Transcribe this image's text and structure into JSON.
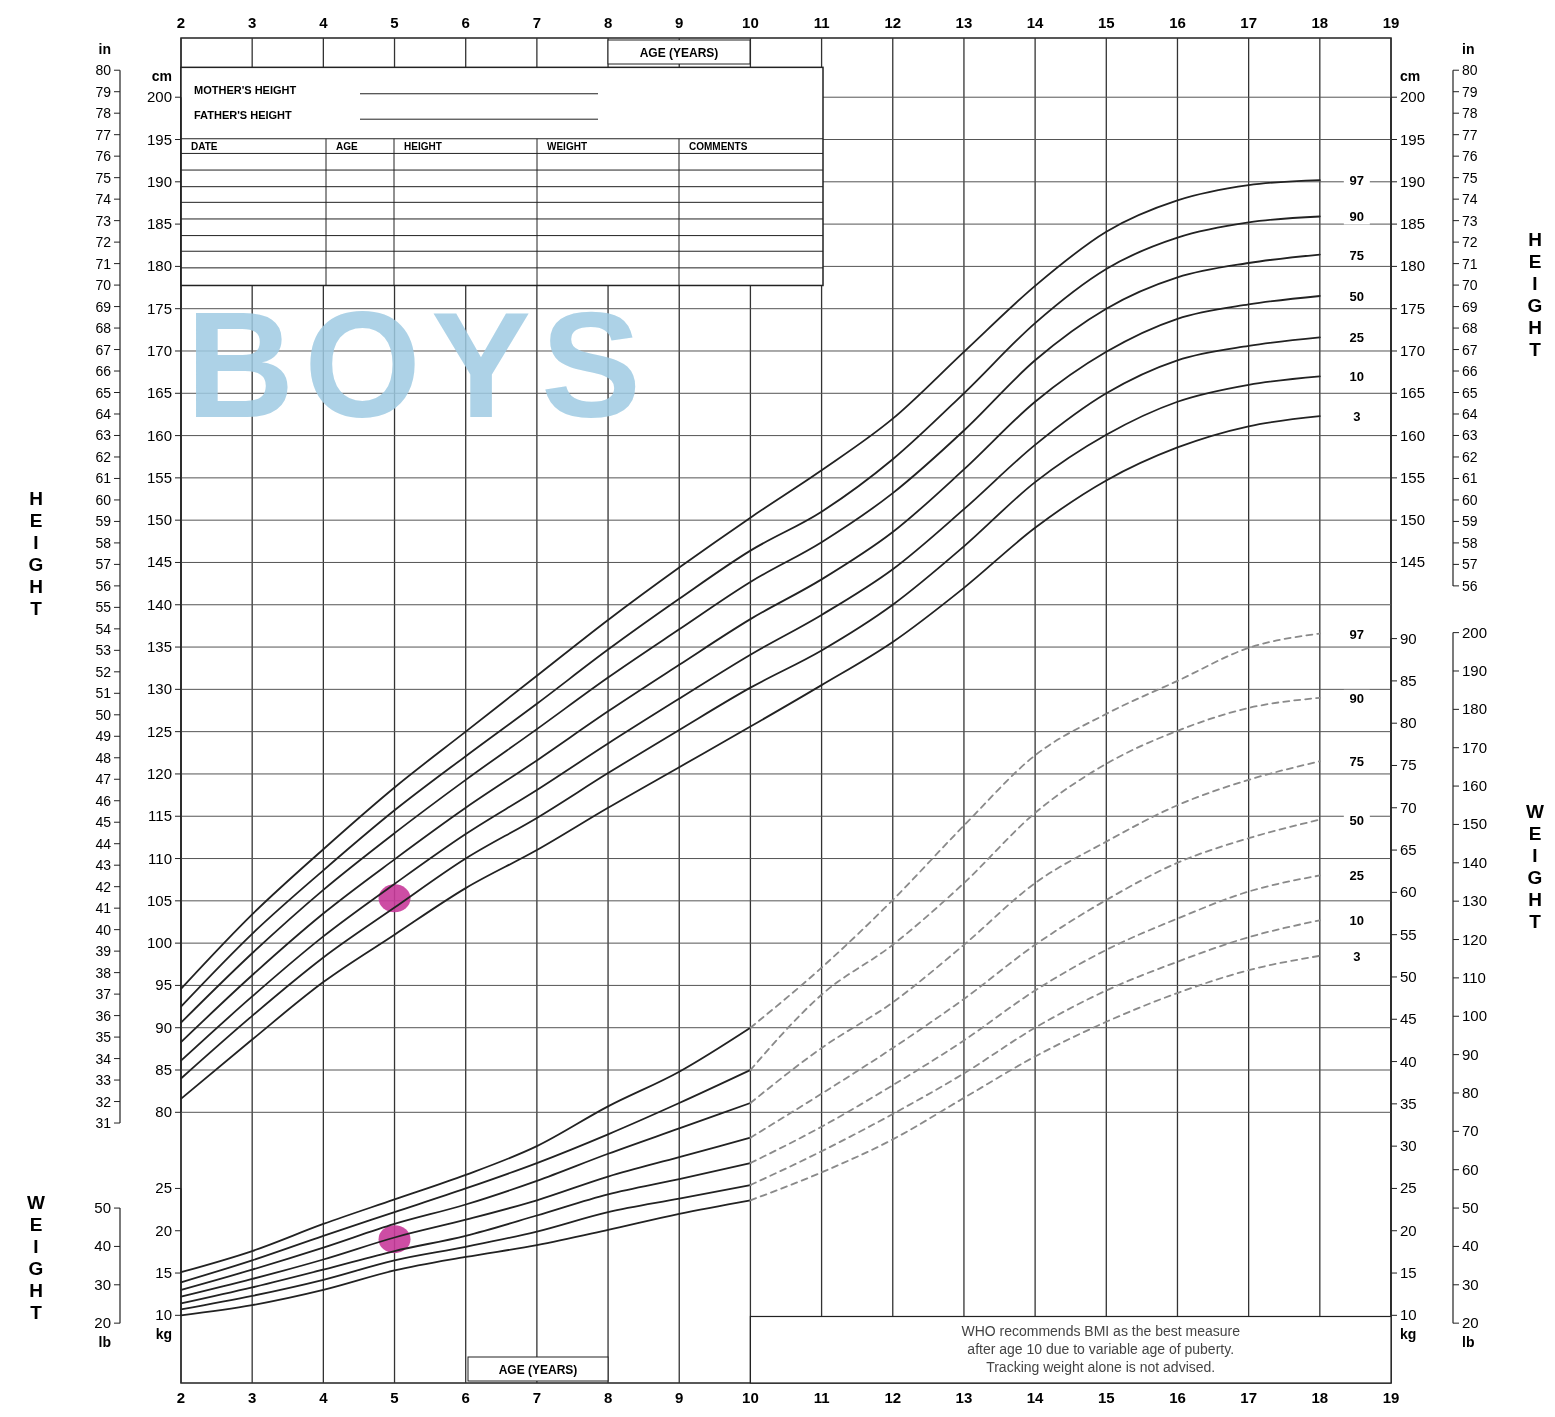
{
  "chart_data": [
    {
      "type": "line",
      "title": "BOYS",
      "xlabel": "AGE (YEARS)",
      "xlim": [
        2,
        19
      ],
      "xticks": [
        2,
        3,
        4,
        5,
        6,
        7,
        8,
        9,
        10,
        11,
        12,
        13,
        14,
        15,
        16,
        17,
        18,
        19
      ],
      "ylabel": "cm",
      "ylim": [
        48,
        207
      ],
      "yticks": [
        80,
        85,
        90,
        95,
        100,
        105,
        110,
        115,
        120,
        125,
        130,
        135,
        140,
        145,
        150,
        155,
        160,
        165,
        170,
        175,
        180,
        185,
        190,
        195,
        200
      ],
      "y2label": "cm",
      "y2lim": [
        48,
        207
      ],
      "y2ticks": [
        145,
        150,
        155,
        160,
        165,
        170,
        175,
        180,
        185,
        190,
        195,
        200
      ],
      "grid": true,
      "legend": "right",
      "annotations": [
        "HEIGHT",
        "HEIGHT",
        "MOTHER'S HEIGHT",
        "FATHER'S HEIGHT",
        "DATE",
        "AGE",
        "HEIGHT",
        "WEIGHT",
        "COMMENTS"
      ],
      "series": [
        {
          "name": "97",
          "color": "#222222",
          "line_style": "solid",
          "x": [
            2,
            3,
            4,
            5,
            6,
            7,
            8,
            9,
            10,
            11,
            12,
            13,
            14,
            15,
            16,
            17,
            18
          ],
          "values": [
            94.6,
            103.4,
            111.1,
            118.4,
            125,
            131.6,
            138.2,
            144.4,
            150.3,
            155.9,
            162,
            169.9,
            177.7,
            184.1,
            187.8,
            189.6,
            190.2
          ]
        },
        {
          "name": "90",
          "color": "#222222",
          "line_style": "solid",
          "x": [
            2,
            3,
            4,
            5,
            6,
            7,
            8,
            9,
            10,
            11,
            12,
            13,
            14,
            15,
            16,
            17,
            18
          ],
          "values": [
            92.5,
            101.1,
            108.6,
            115.7,
            122.1,
            128.3,
            134.7,
            140.7,
            146.4,
            151,
            157.2,
            165,
            173.3,
            179.7,
            183.4,
            185.2,
            185.9
          ]
        },
        {
          "name": "75",
          "color": "#222222",
          "line_style": "solid",
          "x": [
            2,
            3,
            4,
            5,
            6,
            7,
            8,
            9,
            10,
            11,
            12,
            13,
            14,
            15,
            16,
            17,
            18
          ],
          "values": [
            90.6,
            98.8,
            106.3,
            113,
            119.3,
            125.3,
            131.4,
            137.1,
            142.7,
            147.4,
            153.2,
            160.6,
            168.9,
            175,
            178.7,
            180.4,
            181.4
          ]
        },
        {
          "name": "50",
          "color": "#222222",
          "line_style": "solid",
          "x": [
            2,
            3,
            4,
            5,
            6,
            7,
            8,
            9,
            10,
            11,
            12,
            13,
            14,
            15,
            16,
            17,
            18
          ],
          "values": [
            88.3,
            96.2,
            103.5,
            109.9,
            116,
            121.6,
            127.4,
            132.9,
            138.3,
            143,
            148.6,
            156,
            164,
            169.9,
            173.8,
            175.5,
            176.5
          ]
        },
        {
          "name": "25",
          "color": "#222222",
          "line_style": "solid",
          "x": [
            2,
            3,
            4,
            5,
            6,
            7,
            8,
            9,
            10,
            11,
            12,
            13,
            14,
            15,
            16,
            17,
            18
          ],
          "values": [
            86.1,
            93.7,
            100.8,
            107,
            112.9,
            118.1,
            123.6,
            128.9,
            134.1,
            138.8,
            144.2,
            151.3,
            158.9,
            165,
            168.9,
            170.6,
            171.6
          ]
        },
        {
          "name": "10",
          "color": "#222222",
          "line_style": "solid",
          "x": [
            2,
            3,
            4,
            5,
            6,
            7,
            8,
            9,
            10,
            11,
            12,
            13,
            14,
            15,
            16,
            17,
            18
          ],
          "values": [
            84,
            91.4,
            98.3,
            104.2,
            110,
            114.8,
            120.1,
            125.2,
            130.2,
            134.6,
            140,
            146.9,
            154.5,
            160.1,
            164,
            166,
            167
          ]
        },
        {
          "name": "3",
          "color": "#222222",
          "line_style": "solid",
          "x": [
            2,
            3,
            4,
            5,
            6,
            7,
            8,
            9,
            10,
            11,
            12,
            13,
            14,
            15,
            16,
            17,
            18
          ],
          "values": [
            81.6,
            88.6,
            95.4,
            101,
            106.5,
            111,
            116,
            120.8,
            125.6,
            130.5,
            135.6,
            142,
            149.1,
            154.7,
            158.6,
            161.1,
            162.3
          ]
        },
        {
          "type": "scatter",
          "color": "#c83a9a",
          "marker": "circle",
          "x": [
            5
          ],
          "values": [
            105.3
          ]
        }
      ]
    },
    {
      "type": "line",
      "xlim": [
        2,
        19
      ],
      "tick_labels": "y",
      "ylabel": "in",
      "ylim": [
        18.9,
        81.5
      ],
      "yticks": [
        31,
        32,
        33,
        34,
        35,
        36,
        37,
        38,
        39,
        40,
        41,
        42,
        43,
        44,
        45,
        46,
        47,
        48,
        49,
        50,
        51,
        52,
        53,
        54,
        55,
        56,
        57,
        58,
        59,
        60,
        61,
        62,
        63,
        64,
        65,
        66,
        67,
        68,
        69,
        70,
        71,
        72,
        73,
        74,
        75,
        76,
        77,
        78,
        79,
        80
      ],
      "y2label": "in",
      "y2lim": [
        18.9,
        81.5
      ],
      "y2ticks": [
        56,
        57,
        58,
        59,
        60,
        61,
        62,
        63,
        64,
        65,
        66,
        67,
        68,
        69,
        70,
        71,
        72,
        73,
        74,
        75,
        76,
        77,
        78,
        79,
        80
      ]
    },
    {
      "type": "line",
      "xlabel": "AGE (YEARS)",
      "legend": "right",
      "xlim": [
        2,
        19
      ],
      "xticks": [
        2,
        3,
        4,
        5,
        6,
        7,
        8,
        9,
        10,
        11,
        12,
        13,
        14,
        15,
        16,
        17,
        18,
        19
      ],
      "ylabel": "kg",
      "ylim": [
        2,
        161
      ],
      "yticks": [
        10,
        15,
        20,
        25
      ],
      "y2label": "kg",
      "y2lim": [
        2,
        161
      ],
      "y2ticks": [
        10,
        15,
        20,
        25,
        30,
        35,
        40,
        45,
        50,
        55,
        60,
        65,
        70,
        75,
        80,
        85,
        90
      ],
      "annotations": [
        "WEIGHT",
        "WEIGHT",
        "WHO recommends BMI as the best measure",
        "after age 10 due to variable age of puberty.",
        "Tracking weight alone is not advised."
      ],
      "series": [
        {
          "color": "#222222",
          "line_style": "solid",
          "x": [
            2,
            3,
            4,
            5,
            6,
            7,
            8,
            9,
            10
          ],
          "values": [
            15.1,
            17.6,
            20.8,
            23.7,
            26.6,
            30,
            34.7,
            38.8,
            44
          ]
        },
        {
          "color": "#222222",
          "line_style": "solid",
          "x": [
            2,
            3,
            4,
            5,
            6,
            7,
            8,
            9,
            10
          ],
          "values": [
            13.9,
            16.5,
            19.4,
            22.2,
            25,
            28,
            31.4,
            35.1,
            39
          ]
        },
        {
          "color": "#222222",
          "line_style": "solid",
          "x": [
            2,
            3,
            4,
            5,
            6,
            7,
            8,
            9,
            10
          ],
          "values": [
            13,
            15.4,
            18,
            20.8,
            23.1,
            25.9,
            29.1,
            32.1,
            35.1
          ]
        },
        {
          "color": "#222222",
          "line_style": "solid",
          "x": [
            2,
            3,
            4,
            5,
            6,
            7,
            8,
            9,
            10
          ],
          "values": [
            12.2,
            14.3,
            16.6,
            19.2,
            21.3,
            23.6,
            26.4,
            28.7,
            31
          ]
        },
        {
          "color": "#222222",
          "line_style": "solid",
          "x": [
            2,
            3,
            4,
            5,
            6,
            7,
            8,
            9,
            10
          ],
          "values": [
            11.4,
            13.3,
            15.4,
            17.6,
            19.4,
            21.8,
            24.3,
            26.1,
            28
          ]
        },
        {
          "color": "#222222",
          "line_style": "solid",
          "x": [
            2,
            3,
            4,
            5,
            6,
            7,
            8,
            9,
            10
          ],
          "values": [
            10.7,
            12.3,
            14.2,
            16.5,
            18.1,
            19.9,
            22.2,
            23.8,
            25.4
          ]
        },
        {
          "color": "#222222",
          "line_style": "solid",
          "x": [
            2,
            3,
            4,
            5,
            6,
            7,
            8,
            9,
            10
          ],
          "values": [
            10,
            11.2,
            13,
            15.3,
            16.9,
            18.3,
            20.1,
            22,
            23.6
          ]
        },
        {
          "name": "97",
          "color": "#8a8a8a",
          "line_style": "dashed",
          "x": [
            10,
            11,
            12,
            13,
            14,
            15,
            16,
            17,
            18
          ],
          "values": [
            44,
            51.1,
            59.1,
            67.9,
            76.2,
            81.1,
            85,
            88.9,
            90.6
          ]
        },
        {
          "name": "90",
          "color": "#8a8a8a",
          "line_style": "dashed",
          "x": [
            10,
            11,
            12,
            13,
            14,
            15,
            16,
            17,
            18
          ],
          "values": [
            39,
            47.9,
            53.8,
            61.1,
            69.4,
            75.2,
            79.1,
            81.8,
            83
          ]
        },
        {
          "name": "75",
          "color": "#8a8a8a",
          "line_style": "dashed",
          "x": [
            10,
            11,
            12,
            13,
            14,
            15,
            16,
            17,
            18
          ],
          "values": [
            35.1,
            41.6,
            47,
            53.8,
            61.1,
            66,
            70.3,
            73.3,
            75.5
          ]
        },
        {
          "name": "50",
          "color": "#8a8a8a",
          "line_style": "dashed",
          "x": [
            10,
            11,
            12,
            13,
            14,
            15,
            16,
            17,
            18
          ],
          "values": [
            31,
            36.2,
            41.6,
            47.4,
            53.8,
            59.1,
            63.5,
            66.4,
            68.6
          ]
        },
        {
          "name": "25",
          "color": "#8a8a8a",
          "line_style": "dashed",
          "x": [
            10,
            11,
            12,
            13,
            14,
            15,
            16,
            17,
            18
          ],
          "values": [
            28,
            32.3,
            37.2,
            42.5,
            48.4,
            53.2,
            56.9,
            60.1,
            62
          ]
        },
        {
          "name": "10",
          "color": "#8a8a8a",
          "line_style": "dashed",
          "x": [
            10,
            11,
            12,
            13,
            14,
            15,
            16,
            17,
            18
          ],
          "values": [
            25.4,
            29.4,
            33.8,
            38.6,
            44,
            48.4,
            51.8,
            54.7,
            56.7
          ]
        },
        {
          "name": "3",
          "color": "#8a8a8a",
          "line_style": "dashed",
          "x": [
            10,
            11,
            12,
            13,
            14,
            15,
            16,
            17,
            18
          ],
          "values": [
            23.6,
            26.9,
            30.8,
            35.7,
            40.6,
            44.7,
            48.1,
            50.8,
            52.5
          ]
        },
        {
          "type": "scatter",
          "color": "#c83a9a",
          "marker": "circle",
          "x": [
            5
          ],
          "values": [
            19
          ]
        }
      ]
    },
    {
      "type": "line",
      "xlim": [
        2,
        19
      ],
      "tick_labels": "y",
      "ylabel": "lb",
      "ylim": [
        4.4,
        355
      ],
      "yticks": [
        20,
        30,
        40,
        50
      ],
      "y2label": "lb",
      "y2lim": [
        4.4,
        355
      ],
      "y2ticks": [
        20,
        30,
        40,
        50,
        60,
        70,
        80,
        90,
        100,
        110,
        120,
        130,
        140,
        150,
        160,
        170,
        180,
        190,
        200
      ]
    }
  ]
}
